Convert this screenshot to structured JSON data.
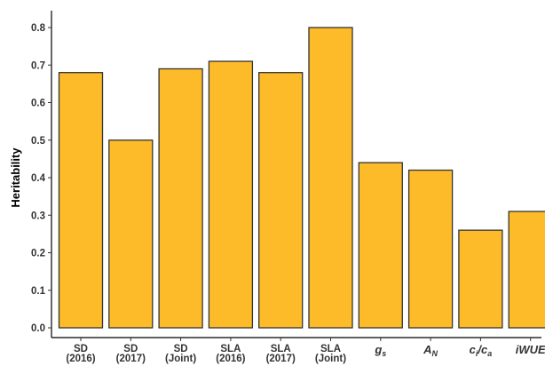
{
  "chart_data": {
    "type": "bar",
    "ylabel": "Heritability",
    "xlabel": "",
    "ylim": [
      0,
      0.8
    ],
    "yticks": [
      "0.0",
      "0.1",
      "0.2",
      "0.3",
      "0.4",
      "0.5",
      "0.6",
      "0.7",
      "0.8"
    ],
    "grid": false,
    "bar_color": "#FDBB2A",
    "bar_edge_color": "#333333",
    "categories": [
      {
        "line1": "SD",
        "line2": "(2016)",
        "italic": false
      },
      {
        "line1": "SD",
        "line2": "(2017)",
        "italic": false
      },
      {
        "line1": "SD",
        "line2": "(Joint)",
        "italic": false
      },
      {
        "line1": "SLA",
        "line2": "(2016)",
        "italic": false
      },
      {
        "line1": "SLA",
        "line2": "(2017)",
        "italic": false
      },
      {
        "line1": "SLA",
        "line2": "(Joint)",
        "italic": false
      },
      {
        "main": "g",
        "sub": "s",
        "italic": true
      },
      {
        "main": "A",
        "sub": "N",
        "italic": true
      },
      {
        "main": "c",
        "sub": "i",
        "main2": "/c",
        "sub2": "a",
        "italic": true
      },
      {
        "main": "iWUE",
        "italic": true
      }
    ],
    "values": [
      0.68,
      0.5,
      0.69,
      0.71,
      0.68,
      0.8,
      0.44,
      0.42,
      0.26,
      0.31
    ]
  }
}
